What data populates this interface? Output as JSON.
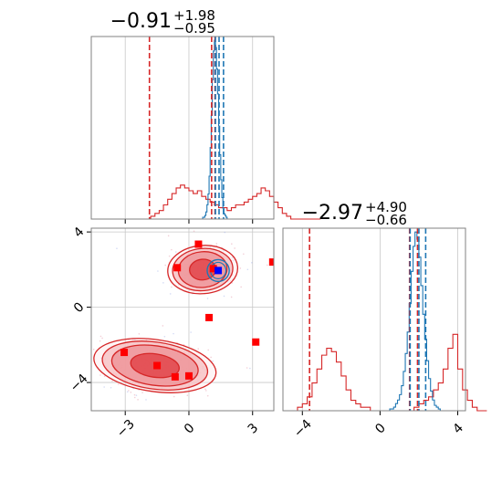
{
  "chart_data": {
    "type": "corner",
    "panels": [
      {
        "id": "marginal-param1",
        "kind": "histogram",
        "title": {
          "value": "−0.91",
          "plus": "+1.98",
          "minus": "−0.95"
        },
        "xlim": [
          -4.6,
          4.0
        ],
        "xticks": [
          -3,
          0,
          3
        ],
        "red_quantiles": [
          -1.86,
          1.07,
          1.23
        ],
        "blue_quantiles": [
          1.25,
          1.42,
          1.63
        ],
        "red_hist": {
          "edges_start": -4.6,
          "bin_width": 0.2,
          "counts": [
            0,
            0,
            0,
            0,
            0,
            0,
            0,
            0,
            0,
            0,
            0,
            0,
            0,
            0,
            1,
            2,
            3,
            5,
            7,
            9,
            11,
            12,
            11,
            10,
            9,
            10,
            8,
            7,
            6,
            5,
            4,
            4,
            3,
            4,
            5,
            5,
            6,
            7,
            8,
            9,
            11,
            10,
            8,
            6,
            4,
            2,
            1,
            0,
            0,
            0,
            0,
            0,
            0,
            0
          ]
        },
        "blue_hist": {
          "edges_start": 0.6,
          "bin_width": 0.05,
          "counts": [
            0,
            1,
            1,
            2,
            4,
            8,
            14,
            24,
            40,
            58,
            78,
            94,
            100,
            96,
            84,
            70,
            52,
            36,
            22,
            12,
            6,
            3,
            2,
            1,
            0,
            0
          ]
        }
      },
      {
        "id": "joint-param1-param2",
        "kind": "2d",
        "xlim": [
          -4.6,
          4.0
        ],
        "ylim": [
          -5.5,
          4.2
        ],
        "xticks": [
          -3,
          0,
          3
        ],
        "yticks": [
          4,
          0,
          -4
        ],
        "red_regions": [
          {
            "cx": 0.65,
            "cy": 2.0,
            "rx": [
              0.62,
              1.15,
              1.42,
              1.65
            ],
            "ry": [
              0.55,
              0.95,
              1.12,
              1.28
            ],
            "rot": -5
          },
          {
            "cx": -1.6,
            "cy": -3.1,
            "rx": [
              1.15,
              2.05,
              2.5,
              2.9
            ],
            "ry": [
              0.62,
              1.05,
              1.25,
              1.38
            ],
            "rot": 8
          }
        ],
        "blue_region": {
          "cx": 1.38,
          "cy": 1.95,
          "rx": 0.52,
          "ry": 0.58
        },
        "blue_point": [
          1.38,
          1.95
        ],
        "red_points": [
          [
            0.45,
            3.35
          ],
          [
            -0.55,
            2.1
          ],
          [
            1.15,
            2.05
          ],
          [
            3.95,
            2.4
          ],
          [
            0.95,
            -0.55
          ],
          [
            3.15,
            -1.85
          ],
          [
            -3.05,
            -2.4
          ],
          [
            -1.5,
            -3.1
          ],
          [
            -0.65,
            -3.7
          ],
          [
            0.0,
            -3.65
          ]
        ],
        "red_scatter_seed": 7,
        "blue_scatter_seed": 11
      },
      {
        "id": "marginal-param2",
        "kind": "histogram",
        "title": {
          "value": "−2.97",
          "plus": "+4.90",
          "minus": "−0.66"
        },
        "xlim": [
          -5.0,
          4.4
        ],
        "xticks": [
          -4,
          0,
          4
        ],
        "red_quantiles": [
          -3.63,
          1.93,
          1.52
        ],
        "blue_quantiles": [
          1.55,
          2.0,
          2.35
        ],
        "red_hist": {
          "edges_start": -5.0,
          "bin_width": 0.25,
          "counts": [
            0,
            0,
            0,
            1,
            2,
            4,
            8,
            12,
            16,
            18,
            17,
            14,
            10,
            6,
            3,
            2,
            1,
            1,
            0,
            0,
            0,
            0,
            0,
            0,
            0,
            0,
            0,
            1,
            2,
            3,
            4,
            6,
            8,
            12,
            18,
            22,
            12,
            6,
            3,
            1,
            0,
            0
          ]
        },
        "blue_hist": {
          "edges_start": 0.4,
          "bin_width": 0.1,
          "counts": [
            0,
            1,
            1,
            2,
            4,
            6,
            9,
            14,
            22,
            32,
            44,
            60,
            78,
            92,
            100,
            96,
            86,
            70,
            54,
            40,
            28,
            18,
            11,
            6,
            3,
            2,
            1,
            0
          ]
        }
      }
    ]
  }
}
